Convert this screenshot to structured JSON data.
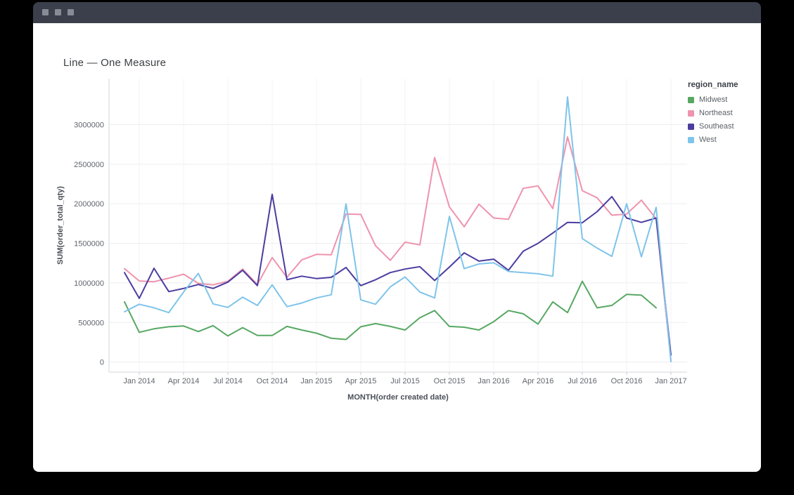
{
  "page": {
    "title": "Line — One Measure"
  },
  "colors": {
    "titlebar_bg": "#3b3f4b",
    "titlebar_dot": "#878b95",
    "card_bg": "#ffffff",
    "gridline": "#ededf1",
    "vertical_gridline": "#f3f3f7",
    "axis_line": "#d5d7db",
    "tick_mark": "#c7cad0",
    "tick_text": "#60656d",
    "axis_title_text": "#4a4f58"
  },
  "chart_data": {
    "type": "line",
    "title": "Line — One Measure",
    "xlabel": "MONTH(order created date)",
    "ylabel": "SUM(order_total_qty)",
    "legend_title": "region_name",
    "legend_position": "right",
    "grid": true,
    "ylim": [
      0,
      3000000
    ],
    "y_ticks": [
      0,
      500000,
      1000000,
      1500000,
      2000000,
      2500000,
      3000000
    ],
    "x": [
      "Dec 2013",
      "Jan 2014",
      "Feb 2014",
      "Mar 2014",
      "Apr 2014",
      "May 2014",
      "Jun 2014",
      "Jul 2014",
      "Aug 2014",
      "Sep 2014",
      "Oct 2014",
      "Nov 2014",
      "Dec 2014",
      "Jan 2015",
      "Feb 2015",
      "Mar 2015",
      "Apr 2015",
      "May 2015",
      "Jun 2015",
      "Jul 2015",
      "Aug 2015",
      "Sep 2015",
      "Oct 2015",
      "Nov 2015",
      "Dec 2015",
      "Jan 2016",
      "Feb 2016",
      "Mar 2016",
      "Apr 2016",
      "May 2016",
      "Jun 2016",
      "Jul 2016",
      "Aug 2016",
      "Sep 2016",
      "Oct 2016",
      "Nov 2016",
      "Dec 2016",
      "Jan 2017"
    ],
    "x_tick_labels": [
      "Jan 2014",
      "Apr 2014",
      "Jul 2014",
      "Oct 2014",
      "Jan 2015",
      "Apr 2015",
      "Jul 2015",
      "Oct 2015",
      "Jan 2016",
      "Apr 2016",
      "Jul 2016",
      "Oct 2016",
      "Jan 2017"
    ],
    "x_tick_indices": [
      1,
      4,
      7,
      10,
      13,
      16,
      19,
      22,
      25,
      28,
      31,
      34,
      37
    ],
    "series": [
      {
        "name": "Midwest",
        "color": "#57a863",
        "values": [
          760000,
          375000,
          420000,
          445000,
          455000,
          385000,
          460000,
          330000,
          435000,
          335000,
          335000,
          450000,
          405000,
          365000,
          300000,
          285000,
          445000,
          485000,
          450000,
          405000,
          560000,
          650000,
          450000,
          440000,
          405000,
          510000,
          650000,
          610000,
          480000,
          760000,
          625000,
          1020000,
          685000,
          715000,
          855000,
          845000,
          685000,
          null
        ]
      },
      {
        "name": "Northeast",
        "color": "#ef93ae",
        "values": [
          1180000,
          1025000,
          1015000,
          1060000,
          1110000,
          995000,
          975000,
          1020000,
          1175000,
          980000,
          1320000,
          1070000,
          1290000,
          1360000,
          1355000,
          1870000,
          1865000,
          1470000,
          1285000,
          1515000,
          1480000,
          2585000,
          1960000,
          1710000,
          1995000,
          1820000,
          1805000,
          2195000,
          2225000,
          1940000,
          2845000,
          2165000,
          2075000,
          1855000,
          1870000,
          2045000,
          1810000,
          20000
        ]
      },
      {
        "name": "Southeast",
        "color": "#4b3da0",
        "values": [
          1130000,
          805000,
          1185000,
          890000,
          930000,
          980000,
          930000,
          1010000,
          1160000,
          965000,
          2120000,
          1040000,
          1085000,
          1055000,
          1070000,
          1195000,
          965000,
          1040000,
          1130000,
          1175000,
          1205000,
          1030000,
          1200000,
          1380000,
          1275000,
          1300000,
          1160000,
          1400000,
          1500000,
          1630000,
          1765000,
          1760000,
          1900000,
          2090000,
          1820000,
          1765000,
          1820000,
          90000
        ]
      },
      {
        "name": "West",
        "color": "#7fc4ea",
        "values": [
          635000,
          730000,
          685000,
          625000,
          885000,
          1120000,
          735000,
          690000,
          820000,
          715000,
          975000,
          700000,
          745000,
          810000,
          850000,
          2000000,
          785000,
          730000,
          950000,
          1075000,
          885000,
          810000,
          1840000,
          1180000,
          1240000,
          1255000,
          1145000,
          1130000,
          1115000,
          1085000,
          3350000,
          1560000,
          1440000,
          1335000,
          2000000,
          1330000,
          1955000,
          5000
        ]
      }
    ]
  }
}
